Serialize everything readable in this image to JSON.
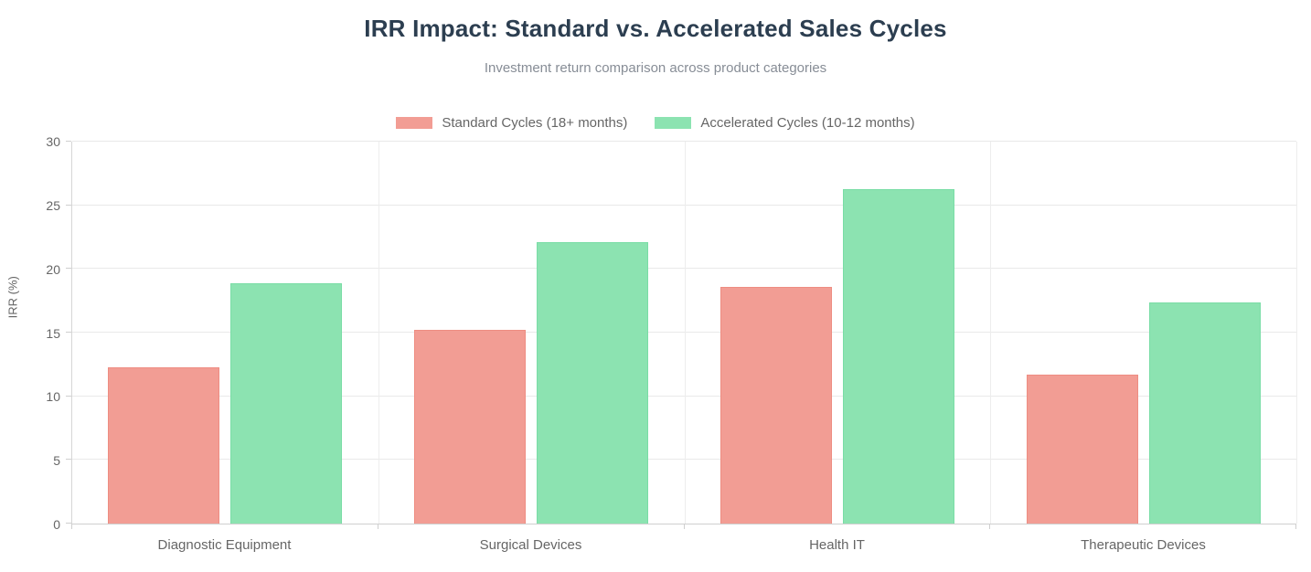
{
  "title": "IRR Impact: Standard vs. Accelerated Sales Cycles",
  "subtitle": "Investment return comparison across product categories",
  "legend": [
    {
      "label": "Standard Cycles (18+ months)"
    },
    {
      "label": "Accelerated Cycles (10-12 months)"
    }
  ],
  "colors": {
    "title_text": "#2c3e50",
    "subtitle_text": "#878d96",
    "axis_text": "#666666",
    "gridline": "#e9e9e9",
    "standard_fill": "#f29d94",
    "standard_border": "#ee8d82",
    "accelerated_fill": "#8ce3b1",
    "accelerated_border": "#7adda6"
  },
  "chart_data": {
    "type": "bar",
    "categories": [
      "Diagnostic Equipment",
      "Surgical Devices",
      "Health IT",
      "Therapeutic Devices"
    ],
    "series": [
      {
        "name": "Standard Cycles (18+ months)",
        "values": [
          12.3,
          15.2,
          18.6,
          11.7
        ],
        "color": "#f29d94",
        "border_color": "#ee8d82"
      },
      {
        "name": "Accelerated Cycles (10-12 months)",
        "values": [
          18.9,
          22.1,
          26.3,
          17.4
        ],
        "color": "#8ce3b1",
        "border_color": "#7adda6"
      }
    ],
    "title": "IRR Impact: Standard vs. Accelerated Sales Cycles",
    "subtitle": "Investment return comparison across product categories",
    "xlabel": "",
    "ylabel": "IRR (%)",
    "ylim": [
      0,
      30
    ],
    "yticks": [
      0,
      5,
      10,
      15,
      20,
      25,
      30
    ],
    "grid": true,
    "legend_position": "top"
  }
}
